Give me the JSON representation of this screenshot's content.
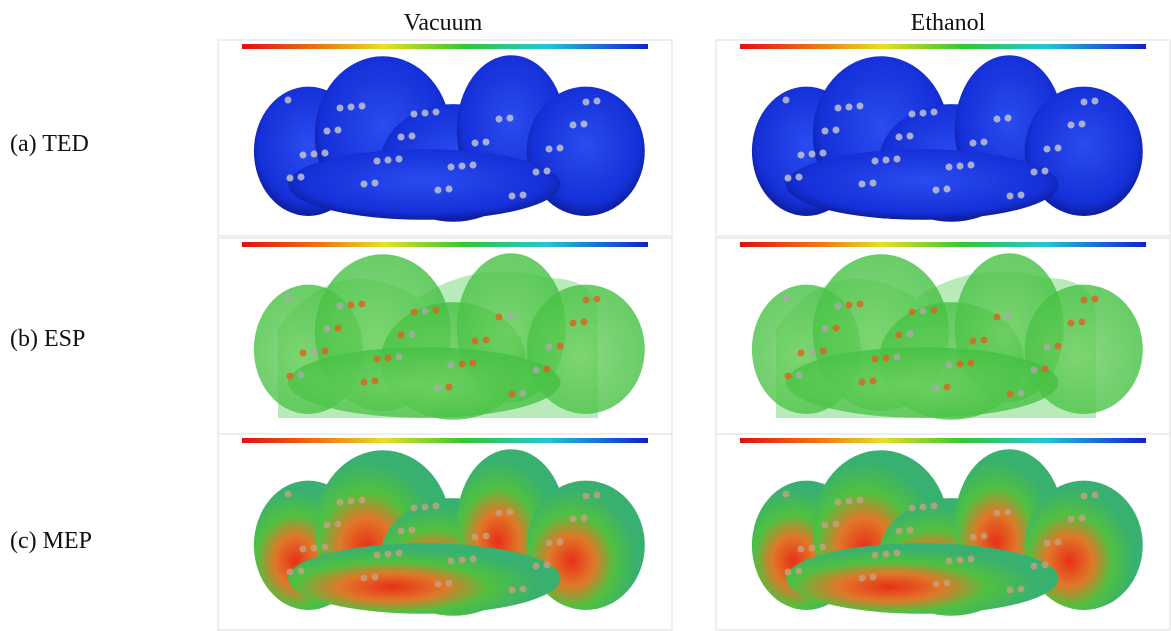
{
  "columns": [
    "Vacuum",
    "Ethanol"
  ],
  "rows": [
    "(a) TED",
    "(b) ESP",
    "(c) MEP"
  ]
}
